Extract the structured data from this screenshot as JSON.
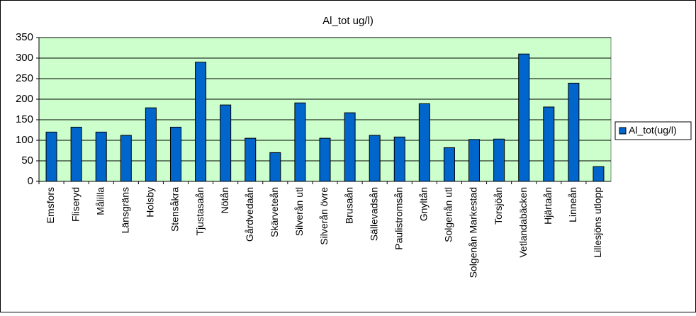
{
  "chart_data": {
    "type": "bar",
    "title": "Al_tot ug/l)",
    "categories": [
      "Emsfors",
      "Fliseryd",
      "Målilla",
      "Länsgräns",
      "Holsby",
      "Stensåkra",
      "Tjustasaån",
      "Nötån",
      "Gårdvedaån",
      "Skärveteån",
      "Silverån utl",
      "Silverån övre",
      "Brusaån",
      "Sällevadsån",
      "Paulistromsån",
      "Gnyltån",
      "Solgenån utl",
      "Solgenån Markestad",
      "Torsjöån",
      "Vetlandabäcken",
      "Hjärtaån",
      "Linneån",
      "Lillesjöns utlopp"
    ],
    "series": [
      {
        "name": "Al_tot(ug/l)",
        "color": "#0066cc",
        "values": [
          120,
          132,
          120,
          112,
          179,
          132,
          290,
          186,
          105,
          70,
          191,
          105,
          167,
          112,
          108,
          189,
          82,
          102,
          103,
          310,
          181,
          239,
          36
        ]
      }
    ],
    "ylim": [
      0,
      350
    ],
    "yticks": [
      0,
      50,
      100,
      150,
      200,
      250,
      300,
      350
    ],
    "grid": true,
    "legend": "right",
    "plot_background": "#ccffcc"
  }
}
